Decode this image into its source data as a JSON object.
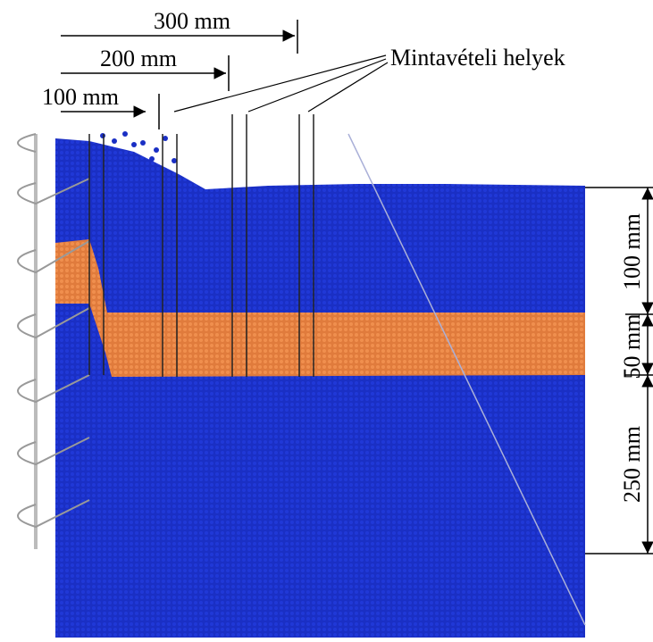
{
  "top_dimensions": [
    "300 mm",
    "200 mm",
    "100 mm"
  ],
  "sampling_label": "Mintavételi helyek",
  "side_dimensions": [
    "100 mm",
    "50 mm",
    "250 mm"
  ]
}
